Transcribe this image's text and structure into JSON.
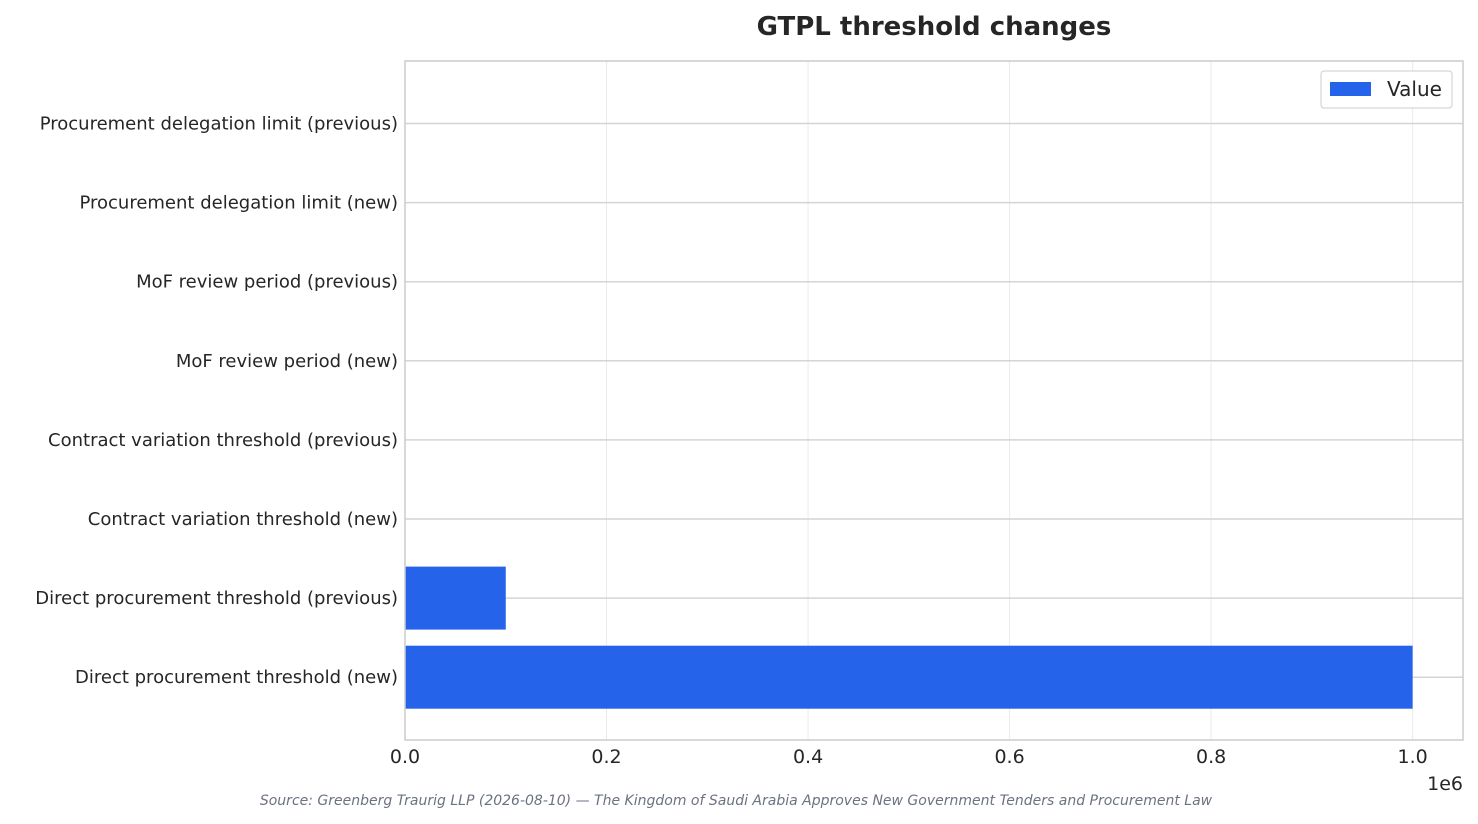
{
  "chart_data": {
    "type": "bar",
    "orientation": "horizontal",
    "title": "GTPL threshold changes",
    "xlabel": "",
    "ylabel": "",
    "categories": [
      "Procurement delegation limit (previous)",
      "Procurement delegation limit (new)",
      "MoF review period (previous)",
      "MoF review period (new)",
      "Contract variation threshold (previous)",
      "Contract variation threshold (new)",
      "Direct procurement threshold (previous)",
      "Direct procurement threshold (new)"
    ],
    "series": [
      {
        "name": "Value",
        "color": "#2563eb",
        "values": [
          0,
          0,
          0,
          0,
          0,
          0,
          100000,
          1000000
        ]
      }
    ],
    "xlim": [
      0,
      1050000
    ],
    "xticks": [
      0,
      200000,
      400000,
      600000,
      800000,
      1000000
    ],
    "xtick_labels": [
      "0.0",
      "0.2",
      "0.4",
      "0.6",
      "0.8",
      "1.0"
    ],
    "x_offset_label": "1e6",
    "grid": true,
    "legend_position": "top-right",
    "source": "Source: Greenberg Traurig LLP (2026-08-10) — The Kingdom of Saudi Arabia Approves New Government Tenders and Procurement Law"
  }
}
